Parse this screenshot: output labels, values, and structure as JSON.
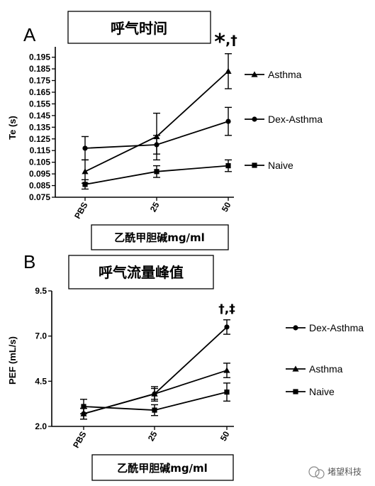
{
  "chart_data": [
    {
      "type": "line",
      "panel": "A",
      "title": "呼气时间",
      "xlabel": "乙酰甲胆碱mg/ml",
      "ylabel": "Te  (s)",
      "categories": [
        "PBS",
        "25",
        "50"
      ],
      "ylim": [
        0.075,
        0.2
      ],
      "yticks": [
        "0.075",
        "0.085",
        "0.095",
        "0.105",
        "0.115",
        "0.125",
        "0.135",
        "0.145",
        "0.155",
        "0.165",
        "0.175",
        "0.185",
        "0.195"
      ],
      "significance": {
        "marker": "*",
        "suffix": ",†"
      },
      "series": [
        {
          "name": "Asthma",
          "marker": "triangle",
          "values": [
            0.097,
            0.127,
            0.183
          ],
          "errors": [
            0.01,
            0.02,
            0.015
          ]
        },
        {
          "name": "Dex-Asthma",
          "marker": "circle",
          "values": [
            0.117,
            0.12,
            0.14
          ],
          "errors": [
            0.01,
            0.008,
            0.012
          ]
        },
        {
          "name": "Naive",
          "marker": "square",
          "values": [
            0.086,
            0.097,
            0.102
          ],
          "errors": [
            0.004,
            0.005,
            0.005
          ]
        }
      ],
      "legend_position": "right"
    },
    {
      "type": "line",
      "panel": "B",
      "title": "呼气流量峰值",
      "xlabel": "乙酰甲胆碱mg/ml",
      "ylabel": "PEF (mL/s)",
      "categories": [
        "PBS",
        "25",
        "50"
      ],
      "ylim": [
        2.0,
        9.5
      ],
      "yticks": [
        "2.0",
        "4.5",
        "7.0",
        "9.5"
      ],
      "significance": {
        "marker": "†,‡"
      },
      "series": [
        {
          "name": "Dex-Asthma",
          "marker": "circle",
          "values": [
            2.7,
            3.8,
            7.5
          ],
          "errors": [
            0.3,
            0.3,
            0.4
          ]
        },
        {
          "name": "Asthma",
          "marker": "triangle",
          "values": [
            2.7,
            3.8,
            5.1
          ],
          "errors": [
            0.3,
            0.4,
            0.4
          ]
        },
        {
          "name": "Naive",
          "marker": "square",
          "values": [
            3.1,
            2.9,
            3.9
          ],
          "errors": [
            0.4,
            0.3,
            0.5
          ]
        }
      ],
      "legend_position": "right"
    }
  ],
  "watermark": "堵望科技"
}
